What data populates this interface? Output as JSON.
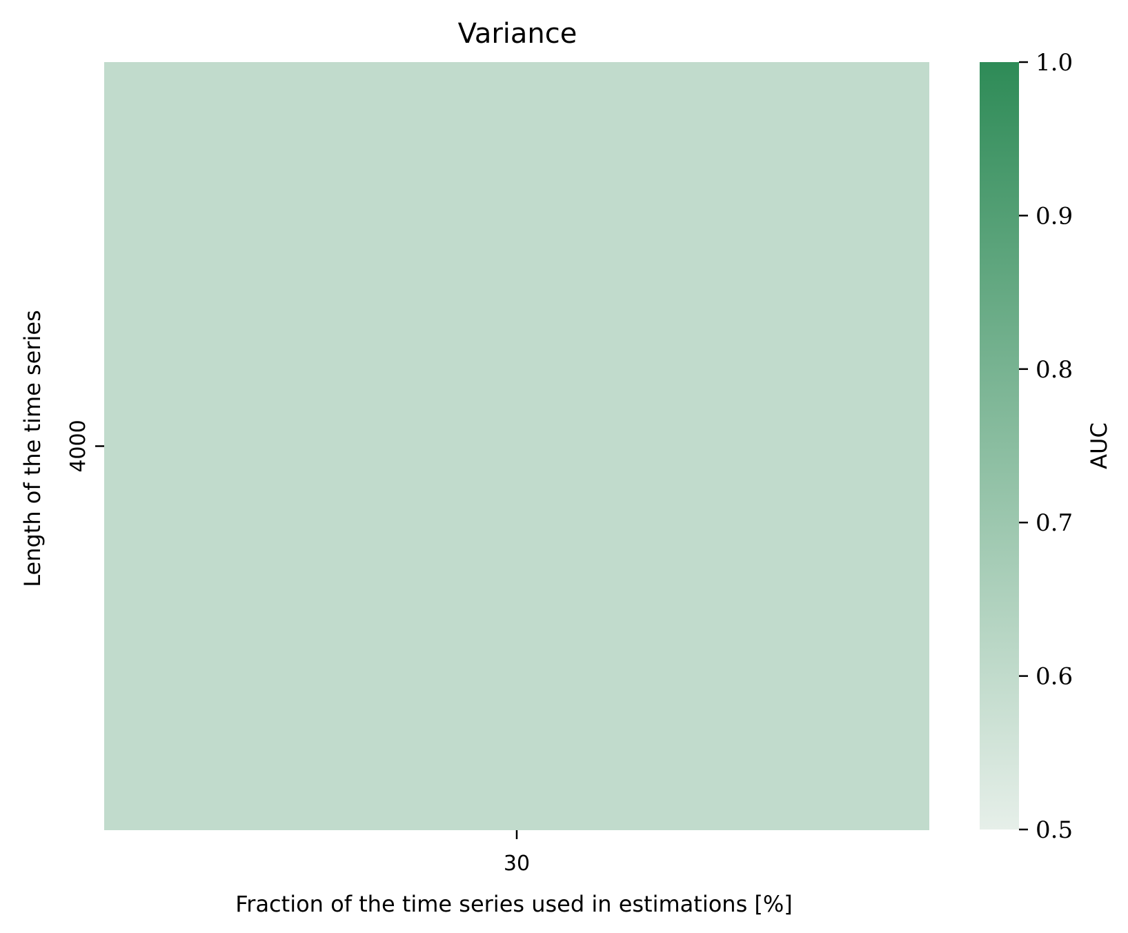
{
  "chart_data": {
    "type": "heatmap",
    "title": "Variance",
    "xlabel": "Fraction of the time series used in estimations [%]",
    "ylabel": "Length of the time series",
    "x_categories": [
      "30"
    ],
    "y_categories": [
      "4000"
    ],
    "values": [
      [
        0.6
      ]
    ],
    "colorbar": {
      "label": "AUC",
      "range": [
        0.5,
        1.0
      ],
      "ticks": [
        "0.5",
        "0.6",
        "0.7",
        "0.8",
        "0.9",
        "1.0"
      ],
      "color_low": "#e6efe9",
      "color_high": "#2e8b57"
    },
    "grid": false,
    "colorbar_placement": "right"
  }
}
